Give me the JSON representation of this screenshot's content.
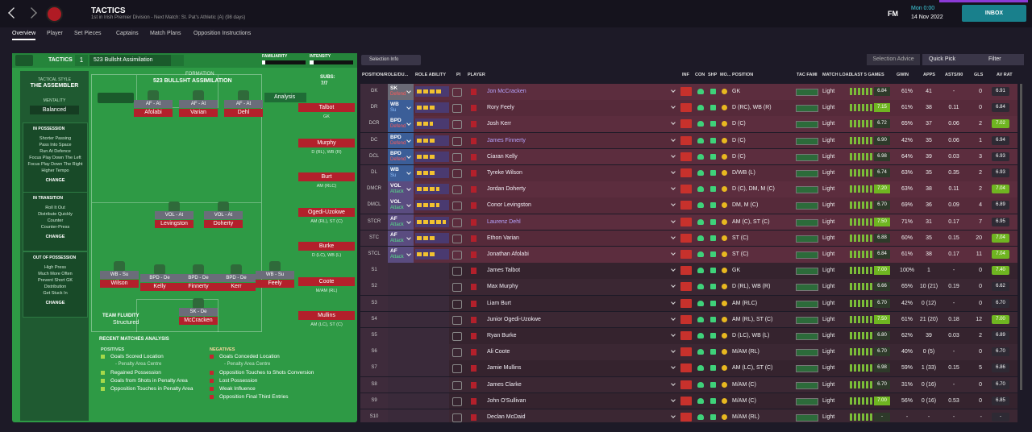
{
  "header": {
    "title": "TACTICS",
    "subtitle": "1st in Irish Premier Division - Next Match: St. Pat's Athletic (A) (98 days)",
    "logo": "FM",
    "time": "Mon 0:00",
    "date": "14 Nov 2022",
    "inbox": "INBOX"
  },
  "tabs": [
    "Overview",
    "Player",
    "Set Pieces",
    "Captains",
    "Match Plans",
    "Opposition Instructions"
  ],
  "tactic": {
    "label": "TACTICS",
    "slot": "1",
    "name": "523 Bullsht Assimilation",
    "familiarity_label": "FAMILIARITY",
    "familiarity": 8,
    "intensity_label": "INTENSITY",
    "intensity": 10
  },
  "sidebar": {
    "style_label": "TACTICAL STYLE",
    "style": "THE ASSEMBLER",
    "mentality_label": "MENTALITY",
    "mentality": "Balanced",
    "change": "CHANGE",
    "sections": [
      {
        "title": "IN POSSESSION",
        "items": [
          "Shorter Passing",
          "Pass Into Space",
          "Run At Defence",
          "Focus Play Down The Left",
          "Focus Play Down The Right",
          "Higher Tempo"
        ]
      },
      {
        "title": "IN TRANSITION",
        "items": [
          "Roll It Out",
          "Distribute Quickly",
          "Counter",
          "Counter-Press"
        ]
      },
      {
        "title": "OUT OF POSSESSION",
        "items": [
          "High Press",
          "Much More Often",
          "Prevent Short GK",
          "Distribution",
          "Get Stuck In"
        ]
      }
    ]
  },
  "formation": {
    "label": "FORMATION",
    "name": "523 BULLSHT ASSIMILATION",
    "subs_label": "SUBS:",
    "subs_count": "7/7",
    "analysis": "Analysis",
    "players": [
      {
        "role": "AF - At",
        "name": "Afolabi"
      },
      {
        "role": "AF - At",
        "name": "Varian"
      },
      {
        "role": "AF - At",
        "name": "Dehl"
      },
      {
        "role": "VOL - At",
        "name": "Levingston"
      },
      {
        "role": "VOL - At",
        "name": "Doherty"
      },
      {
        "role": "WB - Su",
        "name": "Wilson"
      },
      {
        "role": "BPD - De",
        "name": "Kelly"
      },
      {
        "role": "BPD - De",
        "name": "Finnerty"
      },
      {
        "role": "BPD - De",
        "name": "Kerr"
      },
      {
        "role": "WB - Su",
        "name": "Feely"
      },
      {
        "role": "SK - De",
        "name": "McCracken"
      }
    ],
    "subs": [
      {
        "name": "Talbot",
        "positions": "GK"
      },
      {
        "name": "Murphy",
        "positions": "D (RL), WB (R)"
      },
      {
        "name": "Burt",
        "positions": "AM (RLC)"
      },
      {
        "name": "Ogedi-Uzokwe",
        "positions": "AM (RL), ST (C)"
      },
      {
        "name": "Burke",
        "positions": "D (LC), WB (L)"
      },
      {
        "name": "Coote",
        "positions": "M/AM (RL)"
      },
      {
        "name": "Mullins",
        "positions": "AM (LC), ST (C)"
      }
    ],
    "fluidity_label": "TEAM FLUIDITY",
    "fluidity": "Structured"
  },
  "analysis": {
    "title": "RECENT MATCHES ANALYSIS",
    "positives_label": "POSITIVES",
    "positives": [
      {
        "text": "Goals Scored Location",
        "note": "- Penalty Area Centre"
      },
      {
        "text": "Regained Possession"
      },
      {
        "text": "Goals from Shots in Penalty Area"
      },
      {
        "text": "Opposition Touches in Penalty Area"
      }
    ],
    "negatives_label": "NEGATIVES",
    "negatives": [
      {
        "text": "Goals Conceded Location",
        "note": "- Penalty Area Centre"
      },
      {
        "text": "Opposition Touches to Shots Conversion"
      },
      {
        "text": "Lost Possession"
      },
      {
        "text": "Weak Influence"
      },
      {
        "text": "Opposition Final Third Entries"
      }
    ]
  },
  "toolbar": {
    "selection_info": "Selection Info",
    "selection_advice": "Selection Advice",
    "quick_pick": "Quick Pick",
    "filter": "Filter"
  },
  "table": {
    "columns": [
      "POSITION/ROLE/DU...",
      "ROLE ABILITY",
      "PI",
      "PLAYER",
      "INF",
      "CON",
      "SHP",
      "MO...",
      "POSITION",
      "TAC FAMI",
      "MATCH LOAD",
      "LAST 5 GAMES",
      "GWIN",
      "APPS",
      "ASTS/90",
      "GLS",
      "AV RAT"
    ],
    "rows": [
      {
        "pos": "GK",
        "role": "SK",
        "duty": "Defend",
        "stars": 4,
        "player": "Jon McCracken",
        "color": "#b7a4ff",
        "position": "GK",
        "load": "Light",
        "last5": "6.84",
        "gwin": "61%",
        "apps": "41",
        "asts": "-",
        "gls": "0",
        "avrat": "6.91"
      },
      {
        "pos": "DR",
        "role": "WB",
        "duty": "Su",
        "stars": 3,
        "player": "Rory Feely",
        "position": "D (RC), WB (R)",
        "load": "Light",
        "last5": "7.15",
        "gwin": "61%",
        "apps": "38",
        "asts": "0.11",
        "gls": "0",
        "avrat": "6.84"
      },
      {
        "pos": "DCR",
        "role": "BPD",
        "duty": "Defend",
        "stars": 2.5,
        "player": "Josh Kerr",
        "position": "D (C)",
        "load": "Light",
        "last5": "6.72",
        "gwin": "65%",
        "apps": "37",
        "asts": "0.06",
        "gls": "2",
        "avrat": "7.02"
      },
      {
        "pos": "DC",
        "role": "BPD",
        "duty": "Defend",
        "stars": 3,
        "player": "James Finnerty",
        "color": "#b7a4ff",
        "position": "D (C)",
        "load": "Light",
        "last5": "6.90",
        "gwin": "42%",
        "apps": "35",
        "asts": "0.06",
        "gls": "1",
        "avrat": "6.94"
      },
      {
        "pos": "DCL",
        "role": "BPD",
        "duty": "Defend",
        "stars": 3,
        "player": "Ciaran Kelly",
        "position": "D (C)",
        "load": "Light",
        "last5": "6.98",
        "gwin": "64%",
        "apps": "39",
        "asts": "0.03",
        "gls": "3",
        "avrat": "6.93"
      },
      {
        "pos": "DL",
        "role": "WB",
        "duty": "Su",
        "stars": 3,
        "player": "Tyreke Wilson",
        "position": "D/WB (L)",
        "load": "Light",
        "last5": "6.74",
        "gwin": "63%",
        "apps": "35",
        "asts": "0.35",
        "gls": "2",
        "avrat": "6.93"
      },
      {
        "pos": "DMCR",
        "role": "VOL",
        "duty": "Attack",
        "stars": 3.5,
        "player": "Jordan Doherty",
        "position": "D (C), DM, M (C)",
        "load": "Light",
        "last5": "7.20",
        "gwin": "63%",
        "apps": "38",
        "asts": "0.11",
        "gls": "2",
        "avrat": "7.04"
      },
      {
        "pos": "DMCL",
        "role": "VOL",
        "duty": "Attack",
        "stars": 3.5,
        "player": "Conor Levingston",
        "position": "DM, M (C)",
        "load": "Light",
        "last5": "6.70",
        "gwin": "69%",
        "apps": "36",
        "asts": "0.09",
        "gls": "4",
        "avrat": "6.89"
      },
      {
        "pos": "STCR",
        "role": "AF",
        "duty": "Attack",
        "stars": 4.5,
        "player": "Laurenz Dehl",
        "color": "#b7a4ff",
        "position": "AM (C), ST (C)",
        "load": "Light",
        "last5": "7.50",
        "gwin": "71%",
        "apps": "31",
        "asts": "0.17",
        "gls": "7",
        "avrat": "6.95"
      },
      {
        "pos": "STC",
        "role": "AF",
        "duty": "Attack",
        "stars": 3,
        "player": "Ethon Varian",
        "position": "ST (C)",
        "load": "Light",
        "last5": "6.88",
        "gwin": "60%",
        "apps": "35",
        "asts": "0.15",
        "gls": "20",
        "avrat": "7.04"
      },
      {
        "pos": "STCL",
        "role": "AF",
        "duty": "Attack",
        "stars": 3,
        "player": "Jonathan Afolabi",
        "position": "ST (C)",
        "load": "Light",
        "last5": "6.84",
        "gwin": "61%",
        "apps": "38",
        "asts": "0.17",
        "gls": "11",
        "avrat": "7.04"
      },
      {
        "pos": "S1",
        "player": "James Talbot",
        "position": "GK",
        "load": "Light",
        "last5": "7.00",
        "gwin": "100%",
        "apps": "1",
        "asts": "-",
        "gls": "0",
        "avrat": "7.40"
      },
      {
        "pos": "S2",
        "player": "Max Murphy",
        "position": "D (RL), WB (R)",
        "load": "Light",
        "last5": "6.66",
        "gwin": "65%",
        "apps": "10 (21)",
        "asts": "0.19",
        "gls": "0",
        "avrat": "6.62"
      },
      {
        "pos": "S3",
        "player": "Liam Burt",
        "position": "AM (RLC)",
        "load": "Light",
        "last5": "6.70",
        "gwin": "42%",
        "apps": "0 (12)",
        "asts": "-",
        "gls": "0",
        "avrat": "6.70"
      },
      {
        "pos": "S4",
        "player": "Junior Ogedi-Uzokwe",
        "position": "AM (RL), ST (C)",
        "load": "Light",
        "last5": "7.50",
        "gwin": "61%",
        "apps": "21 (20)",
        "asts": "0.18",
        "gls": "12",
        "avrat": "7.00"
      },
      {
        "pos": "S5",
        "player": "Ryan Burke",
        "position": "D (LC), WB (L)",
        "load": "Light",
        "last5": "6.80",
        "gwin": "62%",
        "apps": "39",
        "asts": "0.03",
        "gls": "2",
        "avrat": "6.89"
      },
      {
        "pos": "S6",
        "player": "Ali Coote",
        "position": "M/AM (RL)",
        "load": "Light",
        "last5": "6.70",
        "gwin": "40%",
        "apps": "0 (5)",
        "asts": "-",
        "gls": "0",
        "avrat": "6.70"
      },
      {
        "pos": "S7",
        "player": "Jamie Mullins",
        "position": "AM (LC), ST (C)",
        "load": "Light",
        "last5": "6.98",
        "gwin": "59%",
        "apps": "1 (33)",
        "asts": "0.15",
        "gls": "5",
        "avrat": "6.86"
      },
      {
        "pos": "S8",
        "player": "James Clarke",
        "position": "M/AM (C)",
        "load": "Light",
        "last5": "6.70",
        "gwin": "31%",
        "apps": "0 (16)",
        "asts": "-",
        "gls": "0",
        "avrat": "6.70"
      },
      {
        "pos": "S9",
        "player": "John O'Sullivan",
        "position": "M/AM (C)",
        "load": "Light",
        "last5": "7.00",
        "gwin": "56%",
        "apps": "0 (16)",
        "asts": "0.53",
        "gls": "0",
        "avrat": "6.85"
      },
      {
        "pos": "S10",
        "player": "Declan McDaid",
        "position": "M/AM (RL)",
        "load": "Light",
        "last5": "-",
        "gwin": "-",
        "apps": "-",
        "asts": "-",
        "gls": "-",
        "avrat": "-"
      }
    ]
  }
}
